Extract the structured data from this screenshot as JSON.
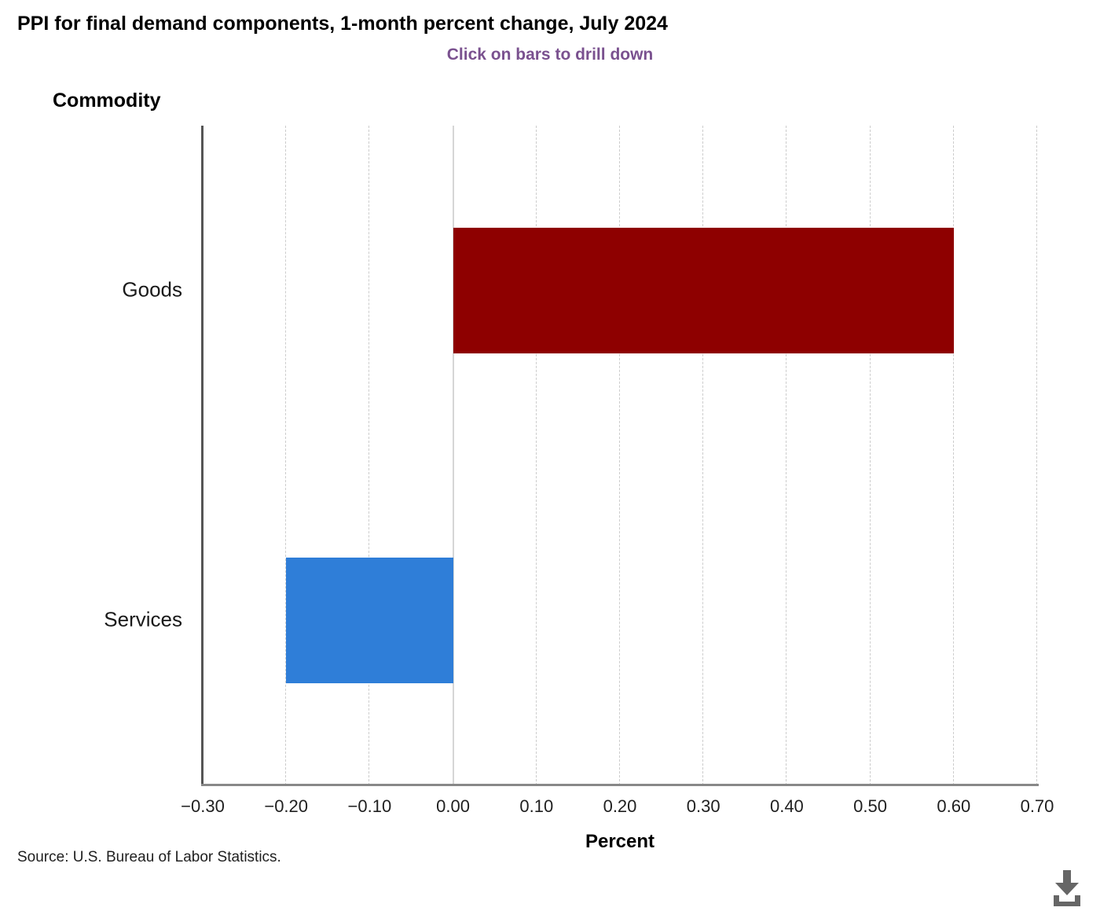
{
  "header": {
    "title": "PPI for final demand components, 1-month percent change, July 2024",
    "subtitle": "Click on bars to drill down",
    "subtitle_color": "#7a518f"
  },
  "chart_data": {
    "type": "bar",
    "orientation": "horizontal",
    "title": "PPI for final demand components, 1-month percent change, July 2024",
    "categories": [
      "Goods",
      "Services"
    ],
    "values": [
      0.6,
      -0.2
    ],
    "bar_colors": [
      "#8e0000",
      "#2f7ed8"
    ],
    "xlabel": "Percent",
    "ylabel": "Commodity",
    "xlim": [
      -0.3,
      0.7
    ],
    "grid": "vertical dashed gridlines, zero line solid",
    "legend": "none",
    "ticks": [
      {
        "value": -0.3,
        "label": "−0.30"
      },
      {
        "value": -0.2,
        "label": "−0.20"
      },
      {
        "value": -0.1,
        "label": "−0.10"
      },
      {
        "value": 0.0,
        "label": "0.00"
      },
      {
        "value": 0.1,
        "label": "0.10"
      },
      {
        "value": 0.2,
        "label": "0.20"
      },
      {
        "value": 0.3,
        "label": "0.30"
      },
      {
        "value": 0.4,
        "label": "0.40"
      },
      {
        "value": 0.5,
        "label": "0.50"
      },
      {
        "value": 0.6,
        "label": "0.60"
      },
      {
        "value": 0.7,
        "label": "0.70"
      }
    ]
  },
  "footer": {
    "source": "Source: U.S. Bureau of Labor Statistics.",
    "download_icon": "download-icon",
    "icon_color": "#666666"
  }
}
